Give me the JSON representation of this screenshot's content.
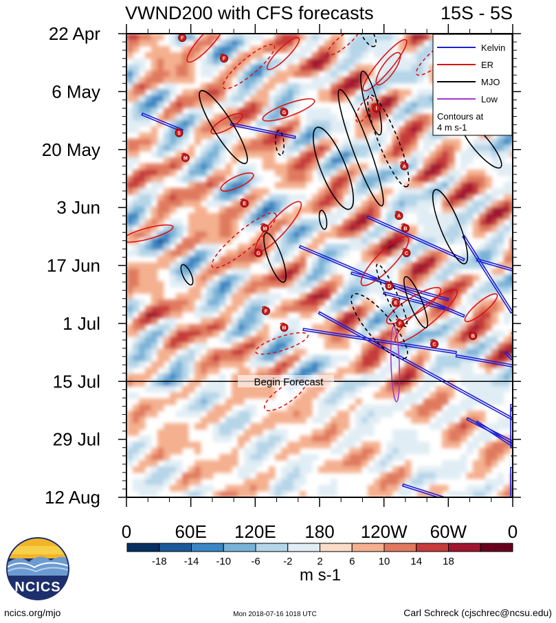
{
  "chart_data": {
    "type": "heatmap",
    "title": "VWND200 with CFS forecasts",
    "region": "15S - 5S",
    "ylabel_ticks": [
      "22 Apr",
      "6 May",
      "20 May",
      "3 Jun",
      "17 Jun",
      "1 Jul",
      "15 Jul",
      "29 Jul",
      "12 Aug"
    ],
    "xtick_labels": [
      "0",
      "60E",
      "120E",
      "180",
      "120W",
      "60W",
      "0"
    ],
    "x_range_deg_east": [
      0,
      360
    ],
    "y_range_days": [
      0,
      112
    ],
    "forecast_start_day": 84,
    "forecast_label": "Begin Forecast",
    "units": "m s-1",
    "colorbar": {
      "levels": [
        -18,
        -14,
        -10,
        -6,
        -2,
        2,
        6,
        10,
        14,
        18
      ],
      "labels": [
        "-18",
        "-14",
        "-10",
        "-6",
        "-2",
        "2",
        "6",
        "10",
        "14",
        "18"
      ],
      "colors": [
        "#053061",
        "#1b5a99",
        "#3a86c2",
        "#79b2d7",
        "#b5d5e8",
        "#e1edf4",
        "#ffffff",
        "#fbdcc8",
        "#f4b08f",
        "#e07a5e",
        "#c63b3b",
        "#a01530",
        "#67001f"
      ]
    },
    "legend": [
      {
        "label": "Kelvin",
        "color": "#1f1fd6"
      },
      {
        "label": "ER",
        "color": "#e01010"
      },
      {
        "label": "MJO",
        "color": "#000000"
      },
      {
        "label": "Low",
        "color": "#a035c8"
      }
    ],
    "contour_note_line1": "Contours at",
    "contour_note_line2": "4 m s-1",
    "storm_tracks": [
      {
        "letter": "F",
        "lon": 52,
        "day": 1
      },
      {
        "letter": "F",
        "lon": 91,
        "day": 6
      },
      {
        "letter": "S",
        "lon": 49,
        "day": 24
      },
      {
        "letter": "M",
        "lon": 55,
        "day": 30
      },
      {
        "letter": "G",
        "lon": 147,
        "day": 19
      },
      {
        "letter": "I",
        "lon": 233,
        "day": 18
      },
      {
        "letter": "E",
        "lon": 110,
        "day": 41
      },
      {
        "letter": "M",
        "lon": 129,
        "day": 47
      },
      {
        "letter": "G",
        "lon": 123,
        "day": 53
      },
      {
        "letter": "F",
        "lon": 130,
        "day": 67
      },
      {
        "letter": "M",
        "lon": 147,
        "day": 71
      },
      {
        "letter": "A",
        "lon": 259,
        "day": 32
      },
      {
        "letter": "A",
        "lon": 254,
        "day": 44
      },
      {
        "letter": "B",
        "lon": 260,
        "day": 47
      },
      {
        "letter": "C",
        "lon": 261,
        "day": 53
      },
      {
        "letter": "D",
        "lon": 245,
        "day": 61
      },
      {
        "letter": "E",
        "lon": 251,
        "day": 65
      },
      {
        "letter": "F",
        "lon": 255,
        "day": 70
      },
      {
        "letter": "C",
        "lon": 287,
        "day": 75
      },
      {
        "letter": "B",
        "lon": 323,
        "day": 73
      }
    ]
  },
  "footer": {
    "left": "ncics.org/mjo",
    "center": "Mon 2018-07-16 1018 UTC",
    "right": "Carl Schreck (cjschrec@ncsu.edu)",
    "logo_text": "NCICS"
  }
}
